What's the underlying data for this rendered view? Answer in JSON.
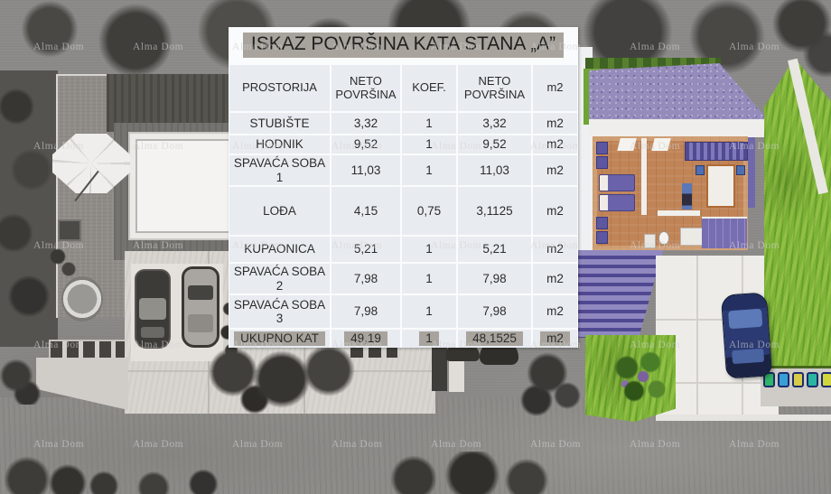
{
  "title": "ISKAZ POVRŠINA KATA STANA „A”",
  "watermark": {
    "text": "Alma Dom"
  },
  "table": {
    "headers": {
      "room": "PROSTORIJA",
      "neto1": "NETO POVRŠINA",
      "koef": "KOEF.",
      "neto2": "NETO POVRŠINA",
      "unit": "m2"
    },
    "rows": [
      {
        "room": "STUBIŠTE",
        "neto1": "3,32",
        "koef": "1",
        "neto2": "3,32",
        "unit": "m2"
      },
      {
        "room": "HODNIK",
        "neto1": "9,52",
        "koef": "1",
        "neto2": "9,52",
        "unit": "m2"
      },
      {
        "room": "SPAVAĆA SOBA 1",
        "neto1": "11,03",
        "koef": "1",
        "neto2": "11,03",
        "unit": "m2"
      },
      {
        "room": "LOĐA",
        "neto1": "4,15",
        "koef": "0,75",
        "neto2": "3,1125",
        "unit": "m2"
      },
      {
        "room": "KUPAONICA",
        "neto1": "5,21",
        "koef": "1",
        "neto2": "5,21",
        "unit": "m2"
      },
      {
        "room": "SPAVAĆA SOBA 2",
        "neto1": "7,98",
        "koef": "1",
        "neto2": "7,98",
        "unit": "m2"
      },
      {
        "room": "SPAVAĆA SOBA 3",
        "neto1": "7,98",
        "koef": "1",
        "neto2": "7,98",
        "unit": "m2"
      }
    ],
    "total": {
      "room": "UKUPNO KAT",
      "neto1": "49,19",
      "koef": "1",
      "neto2": "48,1525",
      "unit": "m2"
    }
  },
  "colors": {
    "highlight_gray": "#a8a49d",
    "panel_cell": "#e8ecf1",
    "grass_green": "#7cb437",
    "gravel_purple": "#968cbb",
    "wood_floor": "#c08457",
    "car_navy": "#232f60"
  }
}
